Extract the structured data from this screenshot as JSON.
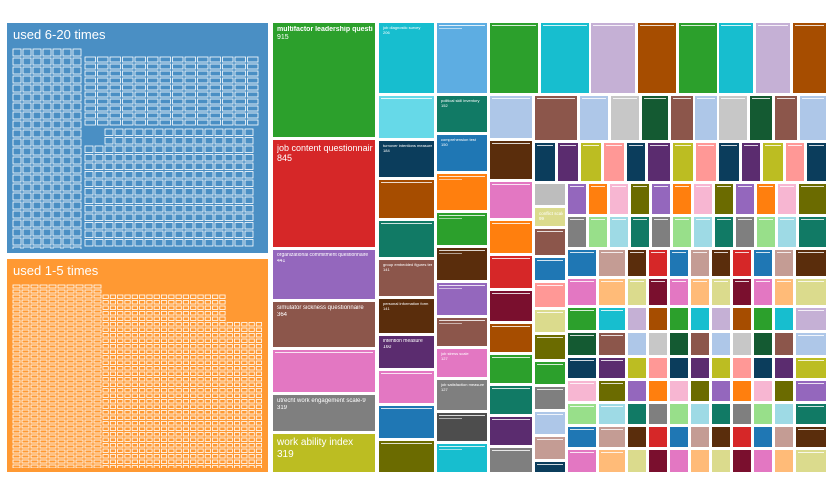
{
  "chart_data": {
    "type": "treemap",
    "title": "",
    "colors": {
      "group_6_20": "#4a8fc4",
      "group_1_5": "#ff9933",
      "palette": [
        "#2ca02c",
        "#d62728",
        "#9467bd",
        "#8c564b",
        "#e377c2",
        "#7f7f7f",
        "#bcbd22",
        "#17becf",
        "#1f77b4",
        "#ff7f0e",
        "#aec7e8",
        "#ffbb78",
        "#98df8a",
        "#ff9896",
        "#c5b0d5",
        "#c49c94",
        "#f7b6d2",
        "#c7c7c7",
        "#dbdb8d",
        "#9edae5",
        "#0b3d5c",
        "#a64d00",
        "#5a2d0c",
        "#6b6b00",
        "#145a32",
        "#7a0f2e",
        "#117a65",
        "#5b2c6f"
      ]
    },
    "groups": [
      {
        "name": "used 6-20 times"
      },
      {
        "name": "used 1-5 times"
      }
    ],
    "items": [
      {
        "name": "multifactor leadership questionnaire",
        "value": 915
      },
      {
        "name": "job content questionnaire",
        "value": 845
      },
      {
        "name": "organizational commitment questionnaire",
        "value": 441
      },
      {
        "name": "simulator sickness questionnaire",
        "value": 364
      },
      {
        "name": "utrecht work engagement scale-9",
        "value": 319
      },
      {
        "name": "work ability index",
        "value": 319
      },
      {
        "name": "job diagnostic survey",
        "value": 206
      },
      {
        "name": "political skill inventory",
        "value": 152
      },
      {
        "name": "comprehension test",
        "value": 150
      },
      {
        "name": "turnover intentions measure",
        "value": 184
      },
      {
        "name": "group embedded figures test",
        "value": 141
      },
      {
        "name": "personal information form",
        "value": 141
      },
      {
        "name": "intention measure",
        "value": 160
      },
      {
        "name": "job stress scale",
        "value": 127
      },
      {
        "name": "job satisfaction measure",
        "value": 127
      },
      {
        "name": "conflict scale",
        "value": 99
      }
    ]
  }
}
